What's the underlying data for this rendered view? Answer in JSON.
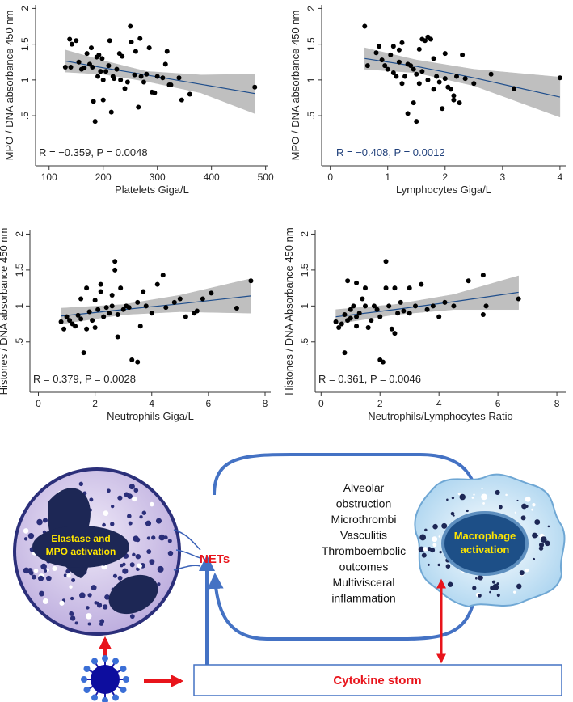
{
  "chart_data": [
    {
      "type": "scatter",
      "x_label": "Platelets Giga/L",
      "y_label": "MPO / DNA absorbance 450 nm",
      "annotation": "R = −0.359, P = 0.0048",
      "annotation_color": "#222222",
      "point_color": "#000000",
      "fit_color": "#1f4e8c",
      "band_color": "#bfbfbf",
      "xlim": [
        75,
        505
      ],
      "ylim": [
        -0.2,
        2.05
      ],
      "xticks": [
        100,
        200,
        300,
        400,
        500
      ],
      "yticks": [
        {
          "value": 0.5,
          "label": ".5"
        },
        1,
        1.5,
        2
      ],
      "x": [
        130,
        138,
        140,
        142,
        150,
        155,
        160,
        165,
        170,
        175,
        178,
        180,
        182,
        185,
        188,
        190,
        192,
        195,
        198,
        200,
        200,
        205,
        210,
        212,
        215,
        218,
        220,
        225,
        230,
        232,
        235,
        240,
        245,
        250,
        252,
        258,
        260,
        265,
        268,
        270,
        275,
        280,
        285,
        290,
        295,
        300,
        310,
        315,
        318,
        322,
        325,
        340,
        345,
        360,
        480
      ],
      "values": [
        1.18,
        1.57,
        1.18,
        1.5,
        1.55,
        1.25,
        1.15,
        1.17,
        1.37,
        1.22,
        1.45,
        1.18,
        0.7,
        0.42,
        1.32,
        1.05,
        1.35,
        1.12,
        1.3,
        0.72,
        1.0,
        1.12,
        1.2,
        1.55,
        0.55,
        1.05,
        1.02,
        1.15,
        1.37,
        1.0,
        1.33,
        0.88,
        0.97,
        1.75,
        1.53,
        1.07,
        1.4,
        0.62,
        1.58,
        1.05,
        0.97,
        1.08,
        1.45,
        0.83,
        0.82,
        1.05,
        1.03,
        1.22,
        1.4,
        0.93,
        0.93,
        1.03,
        0.72,
        0.8,
        0.9
      ],
      "fit": {
        "x": [
          130,
          200,
          280,
          380,
          480
        ],
        "values": [
          1.265,
          1.17,
          1.07,
          0.94,
          0.81
        ]
      },
      "ci": {
        "x": [
          130,
          200,
          280,
          380,
          480
        ],
        "lower": [
          1.11,
          1.08,
          0.98,
          0.82,
          0.53
        ],
        "upper": [
          1.42,
          1.27,
          1.12,
          1.07,
          1.08
        ]
      }
    },
    {
      "type": "scatter",
      "x_label": "Lymphocytes Giga/L",
      "y_label": "MPO / DNA absorbance 450 nm",
      "annotation": "R = −0.408, P = 0.0012",
      "annotation_color": "#1f3f7a",
      "point_color": "#000000",
      "fit_color": "#1f4e8c",
      "band_color": "#bfbfbf",
      "xlim": [
        -0.15,
        4.1
      ],
      "ylim": [
        -0.2,
        2.05
      ],
      "xticks": [
        0,
        1,
        2,
        3,
        4
      ],
      "yticks": [
        {
          "value": 0.5,
          "label": ".5"
        },
        1,
        1.5,
        2
      ],
      "x": [
        0.6,
        0.65,
        0.8,
        0.85,
        0.9,
        0.95,
        1.0,
        1.05,
        1.1,
        1.1,
        1.15,
        1.2,
        1.2,
        1.25,
        1.25,
        1.3,
        1.35,
        1.4,
        1.45,
        1.45,
        1.5,
        1.5,
        1.55,
        1.6,
        1.6,
        1.65,
        1.7,
        1.7,
        1.75,
        1.8,
        1.8,
        1.85,
        1.9,
        1.95,
        2.0,
        2.0,
        2.05,
        2.1,
        2.15,
        2.15,
        2.2,
        2.25,
        2.3,
        2.35,
        2.5,
        2.8,
        3.2,
        4.0,
        1.35,
        1.55
      ],
      "values": [
        1.75,
        1.2,
        1.38,
        1.47,
        1.28,
        1.2,
        1.15,
        1.35,
        1.1,
        1.47,
        1.05,
        1.42,
        1.25,
        1.52,
        0.95,
        1.05,
        1.22,
        1.2,
        1.15,
        0.68,
        1.08,
        0.42,
        1.43,
        1.57,
        1.12,
        1.55,
        1.6,
        1.0,
        1.57,
        0.87,
        1.3,
        1.05,
        0.97,
        0.6,
        1.37,
        1.02,
        0.9,
        0.87,
        0.78,
        0.72,
        1.05,
        0.68,
        1.35,
        1.02,
        0.95,
        1.08,
        0.88,
        1.03,
        0.53,
        0.95
      ],
      "fit": {
        "x": [
          0.6,
          1.5,
          2.5,
          4
        ],
        "values": [
          1.3,
          1.19,
          1.03,
          0.76
        ]
      },
      "ci": {
        "x": [
          0.6,
          1.5,
          2.5,
          4
        ],
        "lower": [
          1.15,
          1.1,
          0.92,
          0.48
        ],
        "upper": [
          1.45,
          1.28,
          1.15,
          1.04
        ]
      }
    },
    {
      "type": "scatter",
      "x_label": "Neutrophils Giga/L",
      "y_label": "Histones / DNA absorbance 450 nm",
      "annotation": "R = 0.379, P = 0.0028",
      "annotation_color": "#222222",
      "point_color": "#000000",
      "fit_color": "#1f4e8c",
      "band_color": "#bfbfbf",
      "xlim": [
        -0.3,
        8.2
      ],
      "ylim": [
        -0.2,
        2.05
      ],
      "xticks": [
        0,
        2,
        4,
        6,
        8
      ],
      "yticks": [
        {
          "value": 0.5,
          "label": ".5"
        },
        1,
        1.5,
        2
      ],
      "x": [
        0.8,
        0.9,
        1.0,
        1.1,
        1.2,
        1.3,
        1.4,
        1.5,
        1.5,
        1.6,
        1.7,
        1.7,
        1.8,
        1.9,
        2.0,
        2.0,
        2.1,
        2.2,
        2.2,
        2.3,
        2.4,
        2.5,
        2.6,
        2.6,
        2.7,
        2.7,
        2.8,
        2.8,
        2.9,
        3.0,
        3.1,
        3.2,
        3.3,
        3.5,
        3.5,
        3.6,
        3.7,
        3.8,
        4.0,
        4.2,
        4.4,
        4.5,
        4.8,
        5.0,
        5.2,
        5.5,
        5.8,
        6.1,
        7.0,
        7.5,
        5.6
      ],
      "values": [
        0.78,
        0.68,
        0.85,
        0.8,
        0.75,
        0.72,
        0.87,
        1.1,
        0.82,
        0.35,
        0.68,
        1.25,
        0.92,
        0.8,
        1.08,
        0.7,
        0.95,
        1.2,
        1.3,
        0.85,
        0.98,
        0.9,
        1.0,
        1.15,
        1.62,
        1.5,
        0.57,
        0.88,
        1.25,
        0.95,
        1.0,
        0.98,
        0.25,
        0.22,
        1.05,
        0.72,
        1.2,
        1.0,
        0.9,
        1.3,
        1.43,
        0.98,
        1.05,
        1.1,
        0.85,
        0.9,
        1.1,
        1.18,
        0.97,
        1.35,
        0.93
      ],
      "fit": {
        "x": [
          0.8,
          3,
          5,
          7.5
        ],
        "values": [
          0.86,
          0.95,
          1.03,
          1.14
        ]
      },
      "ci": {
        "x": [
          0.8,
          3,
          5,
          7.5
        ],
        "lower": [
          0.75,
          0.88,
          0.92,
          0.9
        ],
        "upper": [
          0.97,
          1.02,
          1.15,
          1.38
        ]
      }
    },
    {
      "type": "scatter",
      "x_label": "Neutrophils/Lymphocytes Ratio",
      "y_label": "Histones / DNA Absorbance 450 nm",
      "annotation": "R = 0.361, P = 0.0046",
      "annotation_color": "#222222",
      "point_color": "#000000",
      "fit_color": "#1f4e8c",
      "band_color": "#bfbfbf",
      "xlim": [
        -0.2,
        8.3
      ],
      "ylim": [
        -0.2,
        2.05
      ],
      "xticks": [
        0,
        2,
        4,
        6,
        8
      ],
      "yticks": [
        {
          "value": 0.5,
          "label": ".5"
        },
        1,
        1.5,
        2
      ],
      "x": [
        0.5,
        0.6,
        0.7,
        0.8,
        0.8,
        0.9,
        1.0,
        1.0,
        1.1,
        1.2,
        1.2,
        1.3,
        1.4,
        1.5,
        1.6,
        1.7,
        1.8,
        1.9,
        2.0,
        2.0,
        2.1,
        2.2,
        2.2,
        2.3,
        2.4,
        2.5,
        2.5,
        2.6,
        2.7,
        2.8,
        3.0,
        3.0,
        3.2,
        3.4,
        3.6,
        3.8,
        4.0,
        4.2,
        4.5,
        5.0,
        5.5,
        5.5,
        5.6,
        6.7,
        1.5,
        0.9,
        1.2
      ],
      "values": [
        0.78,
        0.7,
        0.75,
        0.35,
        0.88,
        0.8,
        0.95,
        0.83,
        1.0,
        0.85,
        0.72,
        0.9,
        1.1,
        1.0,
        0.7,
        0.8,
        1.0,
        0.95,
        0.85,
        0.25,
        0.22,
        1.25,
        1.62,
        1.0,
        0.68,
        0.62,
        1.25,
        0.9,
        1.05,
        0.93,
        1.25,
        0.9,
        1.0,
        1.3,
        0.95,
        1.0,
        0.85,
        1.05,
        1.0,
        1.35,
        1.43,
        0.88,
        1.0,
        1.1,
        1.25,
        1.35,
        1.32
      ],
      "fit": {
        "x": [
          0.5,
          2.5,
          4.5,
          6.7
        ],
        "values": [
          0.85,
          0.95,
          1.06,
          1.19
        ]
      },
      "ci": {
        "x": [
          0.5,
          2.5,
          4.5,
          6.7
        ],
        "lower": [
          0.75,
          0.88,
          0.95,
          0.95
        ],
        "upper": [
          0.95,
          1.02,
          1.16,
          1.42
        ]
      }
    }
  ],
  "diagram": {
    "neutrophil_label": [
      "Elastase and",
      "MPO activation"
    ],
    "nets": "NETs",
    "outcomes": [
      "Alveolar",
      "obstruction",
      "Microthrombi",
      "Vasculitis",
      "Thromboembolic",
      "outcomes",
      "Multivisceral",
      "inflammation"
    ],
    "macrophage_label": [
      "Macrophage",
      "activation"
    ],
    "cytokine": "Cytokine storm"
  }
}
